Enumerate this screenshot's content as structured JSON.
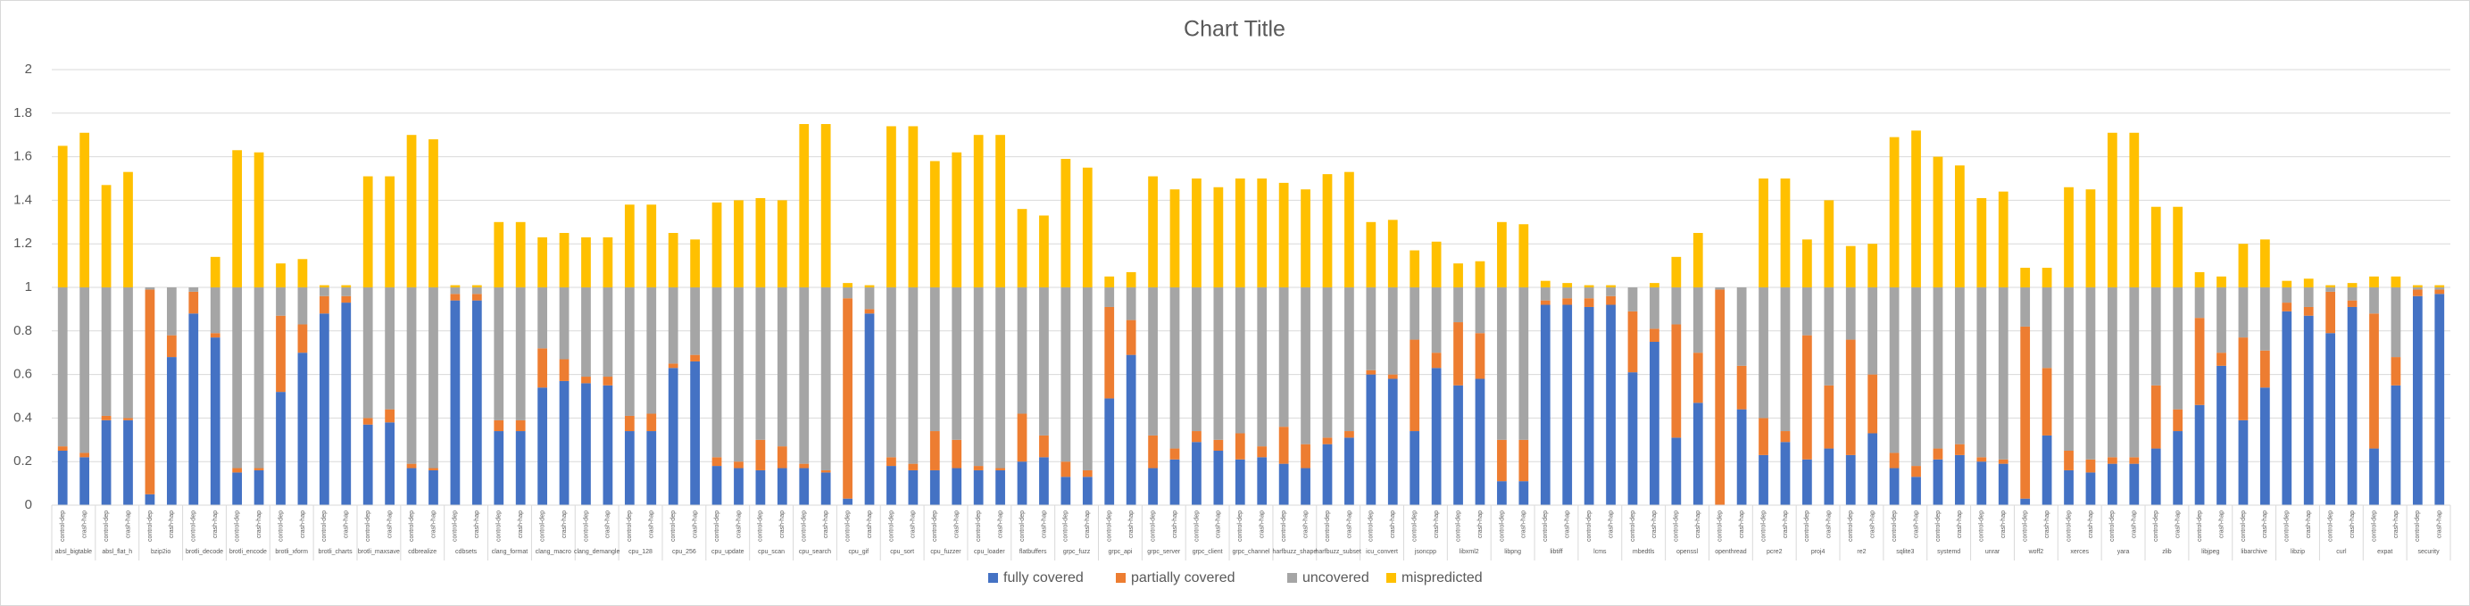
{
  "chart_data": {
    "type": "stacked_bar",
    "title": "Chart Title",
    "categories": [
      "control-dep",
      "crash-hap",
      "control-dep",
      "crash-hap",
      "control-dep",
      "crash-hap",
      "control-dep",
      "crash-hap",
      "control-dep",
      "crash-hap",
      "control-dep",
      "crash-hap",
      "control-dep",
      "crash-hap",
      "control-dep",
      "crash-hap",
      "control-dep",
      "crash-hap",
      "control-dep",
      "crash-hap",
      "control-dep",
      "crash-hap",
      "control-dep",
      "crash-hap",
      "control-dep",
      "crash-hap",
      "control-dep",
      "crash-hap",
      "control-dep",
      "crash-hap",
      "control-dep",
      "crash-hap",
      "control-dep",
      "crash-hap",
      "control-dep",
      "crash-hap",
      "control-dep",
      "crash-hap",
      "control-dep",
      "crash-hap",
      "control-dep",
      "crash-hap",
      "control-dep",
      "crash-hap",
      "control-dep",
      "crash-hap",
      "control-dep",
      "crash-hap",
      "control-dep",
      "crash-hap",
      "control-dep",
      "crash-hap",
      "control-dep",
      "crash-hap",
      "control-dep",
      "crash-hap",
      "control-dep",
      "crash-hap",
      "control-dep",
      "crash-hap",
      "control-dep",
      "crash-hap",
      "control-dep",
      "crash-hap",
      "control-dep",
      "crash-hap",
      "control-dep",
      "crash-hap",
      "control-dep",
      "crash-hap",
      "control-dep",
      "crash-hap",
      "control-dep",
      "crash-hap",
      "control-dep",
      "crash-hap",
      "control-dep",
      "crash-hap",
      "control-dep",
      "crash-hap",
      "control-dep",
      "crash-hap",
      "control-dep",
      "crash-hap",
      "control-dep",
      "crash-hap",
      "control-dep",
      "crash-hap",
      "control-dep",
      "crash-hap",
      "control-dep",
      "crash-hap",
      "control-dep",
      "crash-hap",
      "control-dep",
      "crash-hap",
      "control-dep",
      "crash-hap",
      "control-dep",
      "crash-hap",
      "control-dep",
      "crash-hap",
      "control-dep",
      "crash-hap",
      "control-dep",
      "crash-hap",
      "control-dep",
      "crash-hap",
      "control-dep",
      "crash-hap"
    ],
    "groups": [
      "absl_bigtable",
      "absl_flat_h",
      "bzip2io",
      "brotli_decode",
      "brotli_encode",
      "brotli_xform",
      "brotli_charts",
      "brotli_maxsave",
      "cdbrealize",
      "cdbsets",
      "clang_format",
      "clang_macro",
      "clang_demangle",
      "cpu_128",
      "cpu_256",
      "cpu_update",
      "cpu_scan",
      "cpu_search",
      "cpu_gif",
      "cpu_sort",
      "cpu_fuzzer",
      "cpu_loader",
      "flatbuffers",
      "grpc_fuzz",
      "grpc_api",
      "grpc_server",
      "grpc_client",
      "grpc_channel",
      "harfbuzz_shape",
      "harfbuzz_subset",
      "icu_convert",
      "jsoncpp",
      "libxml2",
      "libpng",
      "libtiff",
      "lcms",
      "mbedtls",
      "openssl",
      "openthread",
      "pcre2",
      "proj4",
      "re2",
      "sqlite3",
      "systemd",
      "unrar",
      "woff2",
      "xerces",
      "yara",
      "zlib",
      "libjpeg",
      "libarchive",
      "libzip",
      "curl",
      "expat",
      "security"
    ],
    "series": [
      {
        "name": "fully covered",
        "color": "#4472c4",
        "values": [
          0.25,
          0.22,
          0.39,
          0.39,
          0.05,
          0.68,
          0.88,
          0.77,
          0.15,
          0.16,
          0.52,
          0.7,
          0.88,
          0.93,
          0.37,
          0.38,
          0.17,
          0.16,
          0.94,
          0.94,
          0.34,
          0.34,
          0.54,
          0.57,
          0.56,
          0.55,
          0.34,
          0.34,
          0.63,
          0.66,
          0.18,
          0.17,
          0.16,
          0.17,
          0.17,
          0.15,
          0.03,
          0.88,
          0.18,
          0.16,
          0.16,
          0.17,
          0.16,
          0.16,
          0.2,
          0.22,
          0.13,
          0.13,
          0.49,
          0.69,
          0.17,
          0.21,
          0.29,
          0.25,
          0.21,
          0.22,
          0.19,
          0.17,
          0.28,
          0.31,
          0.6,
          0.58,
          0.34,
          0.63,
          0.55,
          0.58,
          0.11,
          0.11,
          0.92,
          0.92,
          0.91,
          0.92,
          0.61,
          0.75,
          0.31,
          0.47,
          0,
          0.44,
          0.23,
          0.29,
          0.21,
          0.26,
          0.23,
          0.33,
          0.17,
          0.13,
          0.21,
          0.23,
          0.2,
          0.19,
          0.03,
          0.32,
          0.16,
          0.15,
          0.19,
          0.19,
          0.26,
          0.34,
          0.46,
          0.64,
          0.39,
          0.54,
          0.89,
          0.87,
          0.79,
          0.91,
          0.26,
          0.55,
          0.96,
          0.97
        ]
      },
      {
        "name": "partially covered",
        "color": "#ed7d31",
        "values": [
          0.02,
          0.02,
          0.02,
          0.01,
          0.94,
          0.1,
          0.1,
          0.02,
          0.02,
          0.01,
          0.35,
          0.13,
          0.08,
          0.03,
          0.03,
          0.06,
          0.02,
          0.01,
          0.03,
          0.03,
          0.05,
          0.05,
          0.18,
          0.1,
          0.03,
          0.04,
          0.07,
          0.08,
          0.02,
          0.03,
          0.04,
          0.03,
          0.14,
          0.1,
          0.02,
          0.01,
          0.92,
          0.02,
          0.04,
          0.03,
          0.18,
          0.13,
          0.02,
          0.01,
          0.22,
          0.1,
          0.07,
          0.03,
          0.42,
          0.16,
          0.15,
          0.05,
          0.05,
          0.05,
          0.12,
          0.05,
          0.17,
          0.11,
          0.03,
          0.03,
          0.02,
          0.02,
          0.42,
          0.07,
          0.29,
          0.21,
          0.19,
          0.19,
          0.02,
          0.03,
          0.04,
          0.04,
          0.28,
          0.06,
          0.52,
          0.23,
          0.99,
          0.2,
          0.17,
          0.05,
          0.57,
          0.29,
          0.53,
          0.27,
          0.07,
          0.05,
          0.05,
          0.05,
          0.02,
          0.02,
          0.79,
          0.31,
          0.09,
          0.06,
          0.03,
          0.03,
          0.29,
          0.1,
          0.4,
          0.06,
          0.38,
          0.17,
          0.04,
          0.04,
          0.19,
          0.03,
          0.62,
          0.13,
          0.03,
          0.02
        ]
      },
      {
        "name": "uncovered",
        "color": "#a5a5a5",
        "values": [
          0.73,
          0.76,
          0.59,
          0.6,
          0.01,
          0.22,
          0.02,
          0.21,
          0.83,
          0.83,
          0.13,
          0.17,
          0.04,
          0.04,
          0.6,
          0.56,
          0.81,
          0.83,
          0.03,
          0.03,
          0.61,
          0.61,
          0.28,
          0.33,
          0.41,
          0.41,
          0.59,
          0.58,
          0.35,
          0.31,
          0.78,
          0.8,
          0.7,
          0.73,
          0.81,
          0.84,
          0.05,
          0.1,
          0.78,
          0.81,
          0.66,
          0.7,
          0.82,
          0.83,
          0.58,
          0.68,
          0.8,
          0.84,
          0.09,
          0.15,
          0.68,
          0.74,
          0.66,
          0.7,
          0.67,
          0.73,
          0.64,
          0.72,
          0.69,
          0.66,
          0.38,
          0.4,
          0.24,
          0.3,
          0.16,
          0.21,
          0.7,
          0.7,
          0.06,
          0.05,
          0.05,
          0.04,
          0.11,
          0.19,
          0.17,
          0.3,
          0.01,
          0.36,
          0.6,
          0.66,
          0.22,
          0.45,
          0.24,
          0.4,
          0.76,
          0.82,
          0.74,
          0.72,
          0.78,
          0.79,
          0.18,
          0.37,
          0.75,
          0.79,
          0.78,
          0.78,
          0.45,
          0.56,
          0.14,
          0.3,
          0.23,
          0.29,
          0.07,
          0.09,
          0.02,
          0.06,
          0.12,
          0.32,
          0.01,
          0.01
        ]
      },
      {
        "name": "mispredicted",
        "color": "#ffc000",
        "values": [
          0.65,
          0.71,
          0.47,
          0.53,
          0,
          0,
          0,
          0.14,
          0.63,
          0.62,
          0.11,
          0.13,
          0.01,
          0.01,
          0.51,
          0.51,
          0.7,
          0.68,
          0.01,
          0.01,
          0.3,
          0.3,
          0.23,
          0.25,
          0.23,
          0.23,
          0.38,
          0.38,
          0.25,
          0.22,
          0.39,
          0.4,
          0.41,
          0.4,
          0.75,
          0.75,
          0.02,
          0.01,
          0.74,
          0.74,
          0.58,
          0.62,
          0.7,
          0.7,
          0.36,
          0.33,
          0.59,
          0.55,
          0.05,
          0.07,
          0.51,
          0.45,
          0.5,
          0.46,
          0.5,
          0.5,
          0.48,
          0.45,
          0.52,
          0.53,
          0.3,
          0.31,
          0.17,
          0.21,
          0.11,
          0.12,
          0.3,
          0.29,
          0.03,
          0.02,
          0.01,
          0.01,
          0,
          0.02,
          0.14,
          0.25,
          0,
          0,
          0.5,
          0.5,
          0.22,
          0.4,
          0.19,
          0.2,
          0.69,
          0.72,
          0.6,
          0.56,
          0.41,
          0.44,
          0.09,
          0.09,
          0.46,
          0.45,
          0.71,
          0.71,
          0.37,
          0.37,
          0.07,
          0.05,
          0.2,
          0.22,
          0.03,
          0.04,
          0.01,
          0.02,
          0.05,
          0.05,
          0.01,
          0.01
        ]
      }
    ],
    "ylim": [
      0,
      2
    ],
    "yticks": [
      0,
      0.2,
      0.4,
      0.6,
      0.8,
      1,
      1.2,
      1.4,
      1.6,
      1.8,
      2
    ],
    "grid": true,
    "legend": "bottom"
  }
}
